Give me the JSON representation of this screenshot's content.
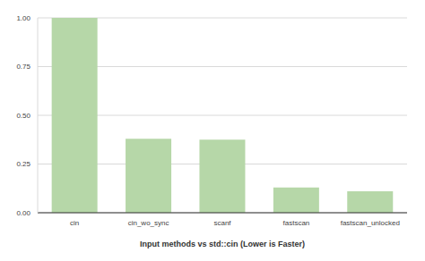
{
  "chart_data": {
    "type": "bar",
    "x_label": "Input methods vs std::cin (Lower is Faster)",
    "categories": [
      "cin",
      "cin_wo_sync",
      "scanf",
      "fastscan",
      "fastscan_unlocked"
    ],
    "values": [
      1.0,
      0.38,
      0.375,
      0.13,
      0.11
    ],
    "color": "#b6d7a8",
    "ylim": [
      0,
      1
    ],
    "yticks": [
      {
        "value": 0,
        "label": "0.00"
      },
      {
        "value": 0.25,
        "label": "0.25"
      },
      {
        "value": 0.5,
        "label": "0.50"
      },
      {
        "value": 0.75,
        "label": "0.75"
      },
      {
        "value": 1,
        "label": "1.00"
      }
    ],
    "grid": true
  }
}
